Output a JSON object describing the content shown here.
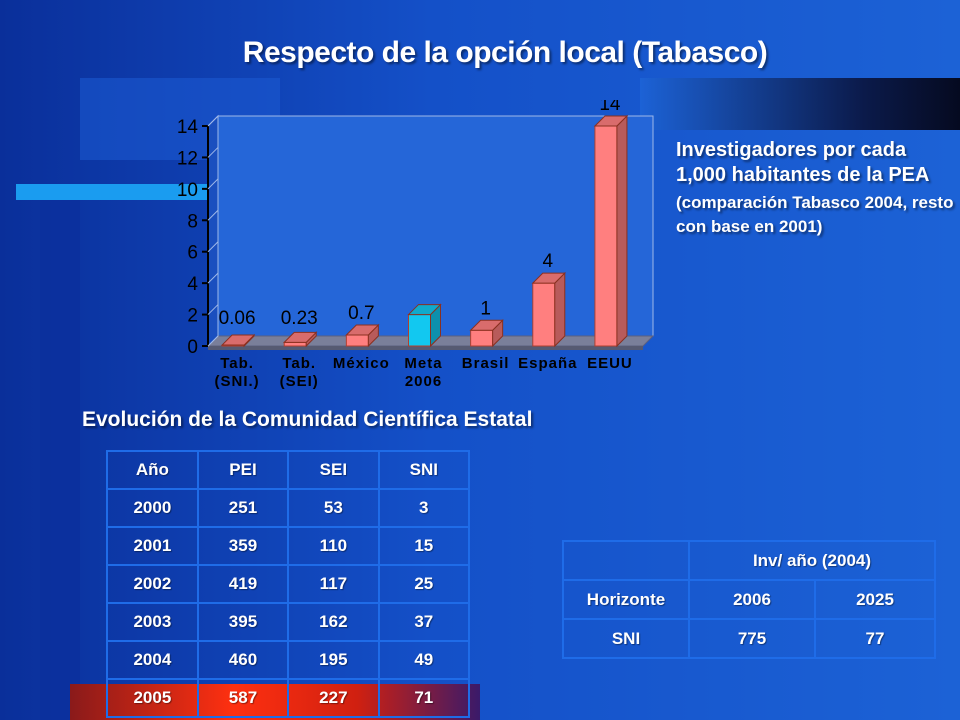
{
  "title": "Respecto de la opción local (Tabasco)",
  "chart_data": {
    "type": "bar",
    "categories": [
      [
        "Tab.",
        "(SNI.)"
      ],
      [
        "Tab.",
        "(SEI)"
      ],
      [
        "México"
      ],
      [
        "Meta",
        "2006"
      ],
      [
        "Brasil"
      ],
      [
        "España"
      ],
      [
        "EEUU"
      ]
    ],
    "values": [
      0.06,
      0.23,
      0.7,
      2,
      1,
      4,
      14
    ],
    "data_labels": [
      "0.06",
      "0.23",
      "0.7",
      "",
      "1",
      "4",
      "14"
    ],
    "bar_colors": [
      "#ff7f7f",
      "#ff7f7f",
      "#ff7f7f",
      "#12c8f0",
      "#ff7f7f",
      "#ff7f7f",
      "#ff7f7f"
    ],
    "ylim": [
      0,
      14
    ],
    "yticks": [
      0,
      2,
      4,
      6,
      8,
      10,
      12,
      14
    ],
    "grid": false,
    "legend": "none",
    "xlabel": "",
    "ylabel": ""
  },
  "side_text": {
    "main": "Investigadores por cada 1,000 habitantes de la PEA",
    "sub": "(comparación Tabasco 2004, resto con base en 2001)"
  },
  "subtitle": "Evolución de la Comunidad Científica Estatal",
  "table1": {
    "headers": [
      "Año",
      "PEI",
      "SEI",
      "SNI"
    ],
    "rows": [
      [
        "2000",
        "251",
        "53",
        "3"
      ],
      [
        "2001",
        "359",
        "110",
        "15"
      ],
      [
        "2002",
        "419",
        "117",
        "25"
      ],
      [
        "2003",
        "395",
        "162",
        "37"
      ],
      [
        "2004",
        "460",
        "195",
        "49"
      ],
      [
        "2005",
        "587",
        "227",
        "71"
      ]
    ]
  },
  "table2": {
    "header": "Inv/ año (2004)",
    "rows": [
      [
        "Horizonte",
        "2006",
        "2025"
      ],
      [
        "SNI",
        "775",
        "77"
      ]
    ]
  }
}
